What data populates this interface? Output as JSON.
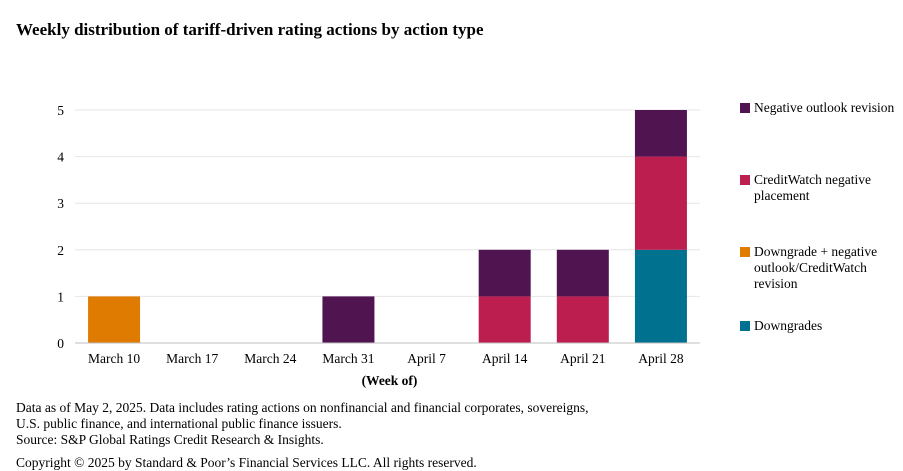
{
  "title": "Weekly distribution of tariff-driven rating actions by action type",
  "notes": {
    "line1": "Data as of May 2, 2025. Data includes rating actions on nonfinancial and financial corporates, sovereigns,",
    "line2": "U.S. public finance, and international public finance issuers.",
    "source": "Source: S&P Global Ratings Credit Research & Insights.",
    "copyright": "Copyright © 2025 by Standard & Poor’s Financial Services LLC. All rights reserved."
  },
  "chart_data": {
    "type": "bar",
    "stacked": true,
    "title": "Weekly distribution of tariff-driven rating actions by action type",
    "xlabel": "(Week of)",
    "ylabel": "",
    "ylim": [
      0,
      5
    ],
    "yticks": [
      0,
      1,
      2,
      3,
      4,
      5
    ],
    "grid": true,
    "legend_position": "right",
    "categories": [
      "March 10",
      "March 17",
      "March 24",
      "March 31",
      "April 7",
      "April 14",
      "April 21",
      "April 28"
    ],
    "series": [
      {
        "name": "Downgrades",
        "color": "#00718f",
        "values": [
          0,
          0,
          0,
          0,
          0,
          0,
          0,
          2
        ]
      },
      {
        "name": "Downgrade + negative outlook/CreditWatch revision",
        "color": "#de7b00",
        "values": [
          1,
          0,
          0,
          0,
          0,
          0,
          0,
          0
        ]
      },
      {
        "name": "CreditWatch negative placement",
        "color": "#bc1e4f",
        "values": [
          0,
          0,
          0,
          0,
          0,
          1,
          1,
          2
        ]
      },
      {
        "name": "Negative outlook revision",
        "color": "#501450",
        "values": [
          0,
          0,
          0,
          1,
          0,
          1,
          1,
          1
        ]
      }
    ],
    "legend_order": [
      3,
      2,
      1,
      0
    ]
  }
}
